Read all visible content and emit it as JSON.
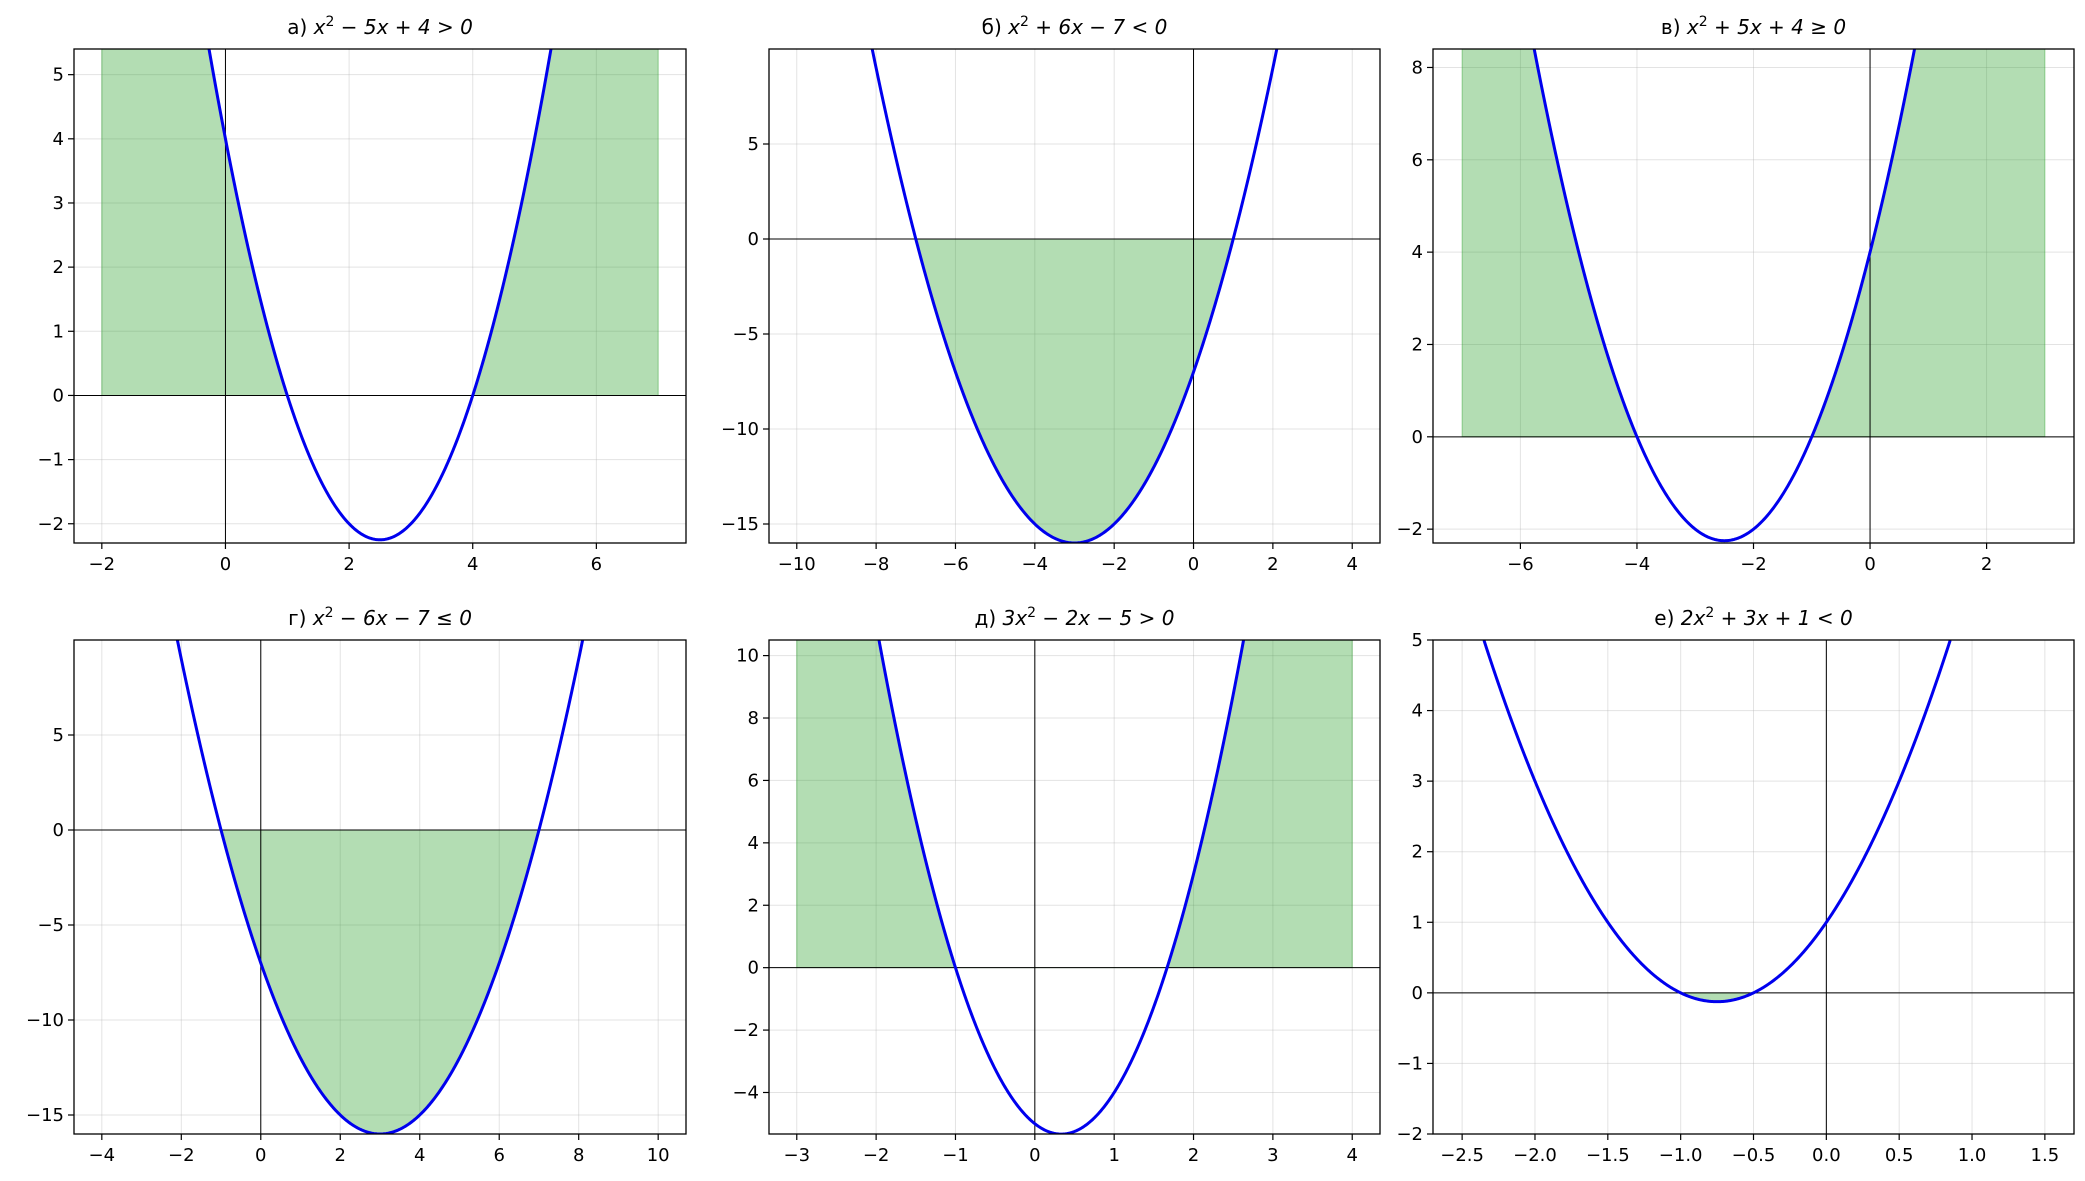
{
  "chart_data": [
    {
      "type": "line",
      "title": "а) x² − 5x + 4 > 0",
      "title_parts": {
        "prefix": "а) ",
        "expr": [
          "x",
          "2",
          " − 5x + 4 > 0"
        ]
      },
      "a": 1,
      "b": -5,
      "c": 4,
      "curve_x": [
        -0.35,
        5.35
      ],
      "xlim": [
        -2.45,
        7.45
      ],
      "ylim": [
        -2.3,
        5.4
      ],
      "xticks": [
        -2,
        0,
        2,
        4,
        6
      ],
      "xtick_labels": [
        "−2",
        "0",
        "2",
        "4",
        "6"
      ],
      "yticks": [
        -2,
        -1,
        0,
        1,
        2,
        3,
        4,
        5
      ],
      "ytick_labels": [
        "−2",
        "−1",
        "0",
        "1",
        "2",
        "3",
        "4",
        "5"
      ],
      "fill": {
        "x": [
          -2,
          7
        ],
        "sign": "positive"
      },
      "grid": true,
      "colors": {
        "curve": "#0000ee",
        "fill": "#2ca02c"
      }
    },
    {
      "type": "line",
      "title": "б) x² + 6x − 7 < 0",
      "title_parts": {
        "prefix": "б) ",
        "expr": [
          "x",
          "2",
          " + 6x − 7 < 0"
        ]
      },
      "a": 1,
      "b": 6,
      "c": -7,
      "curve_x": [
        -8.1,
        2.1
      ],
      "xlim": [
        -10.7,
        4.7
      ],
      "ylim": [
        -16.0,
        10.0
      ],
      "xticks": [
        -10,
        -8,
        -6,
        -4,
        -2,
        0,
        2,
        4
      ],
      "xtick_labels": [
        "−10",
        "−8",
        "−6",
        "−4",
        "−2",
        "0",
        "2",
        "4"
      ],
      "yticks": [
        -15,
        -10,
        -5,
        0,
        5
      ],
      "ytick_labels": [
        "−15",
        "−10",
        "−5",
        "0",
        "5"
      ],
      "fill": {
        "x": [
          -7,
          1
        ],
        "sign": "negative"
      },
      "grid": true,
      "colors": {
        "curve": "#0000ee",
        "fill": "#2ca02c"
      }
    },
    {
      "type": "line",
      "title": "в) x² + 5x + 4 ≥ 0",
      "title_parts": {
        "prefix": "в) ",
        "expr": [
          "x",
          "2",
          " + 5x + 4 ≥ 0"
        ]
      },
      "a": 1,
      "b": 5,
      "c": 4,
      "curve_x": [
        -5.85,
        0.85
      ],
      "xlim": [
        -7.5,
        3.5
      ],
      "ylim": [
        -2.3,
        8.4
      ],
      "xticks": [
        -6,
        -4,
        -2,
        0,
        2
      ],
      "xtick_labels": [
        "−6",
        "−4",
        "−2",
        "0",
        "2"
      ],
      "yticks": [
        -2,
        0,
        2,
        4,
        6,
        8
      ],
      "ytick_labels": [
        "−2",
        "0",
        "2",
        "4",
        "6",
        "8"
      ],
      "fill": {
        "x": [
          -7,
          3
        ],
        "sign": "positive"
      },
      "grid": true,
      "colors": {
        "curve": "#0000ee",
        "fill": "#2ca02c"
      }
    },
    {
      "type": "line",
      "title": "г) x² − 6x − 7 ≤ 0",
      "title_parts": {
        "prefix": "г) ",
        "expr": [
          "x",
          "2",
          " − 6x − 7 ≤ 0"
        ]
      },
      "a": 1,
      "b": -6,
      "c": -7,
      "curve_x": [
        -2.1,
        8.1
      ],
      "xlim": [
        -4.7,
        10.7
      ],
      "ylim": [
        -16.0,
        10.0
      ],
      "xticks": [
        -4,
        -2,
        0,
        2,
        4,
        6,
        8,
        10
      ],
      "xtick_labels": [
        "−4",
        "−2",
        "0",
        "2",
        "4",
        "6",
        "8",
        "10"
      ],
      "yticks": [
        -15,
        -10,
        -5,
        0,
        5
      ],
      "ytick_labels": [
        "−15",
        "−10",
        "−5",
        "0",
        "5"
      ],
      "fill": {
        "x": [
          -1,
          7
        ],
        "sign": "negative"
      },
      "grid": true,
      "colors": {
        "curve": "#0000ee",
        "fill": "#2ca02c"
      }
    },
    {
      "type": "line",
      "title": "д) 3x² − 2x − 5 > 0",
      "title_parts": {
        "prefix": "д) ",
        "expr": [
          "3x",
          "2",
          " − 2x − 5 > 0"
        ]
      },
      "a": 3,
      "b": -2,
      "c": -5,
      "curve_x": [
        -2.05,
        2.7
      ],
      "xlim": [
        -3.35,
        4.35
      ],
      "ylim": [
        -5.33,
        10.5
      ],
      "xticks": [
        -3,
        -2,
        -1,
        0,
        1,
        2,
        3,
        4
      ],
      "xtick_labels": [
        "−3",
        "−2",
        "−1",
        "0",
        "1",
        "2",
        "3",
        "4"
      ],
      "yticks": [
        -4,
        -2,
        0,
        2,
        4,
        6,
        8,
        10
      ],
      "ytick_labels": [
        "−4",
        "−2",
        "0",
        "2",
        "4",
        "6",
        "8",
        "10"
      ],
      "fill": {
        "x": [
          -3,
          4
        ],
        "sign": "positive"
      },
      "grid": true,
      "colors": {
        "curve": "#0000ee",
        "fill": "#2ca02c"
      }
    },
    {
      "type": "line",
      "title": "е) 2x² + 3x + 1 < 0",
      "title_parts": {
        "prefix": "е) ",
        "expr": [
          "2x",
          "2",
          " + 3x + 1 < 0"
        ]
      },
      "a": 2,
      "b": 3,
      "c": 1,
      "curve_x": [
        -2.35,
        0.85
      ],
      "xlim": [
        -2.7,
        1.7
      ],
      "ylim": [
        -2.0,
        5.0
      ],
      "xticks": [
        -2.5,
        -2.0,
        -1.5,
        -1.0,
        -0.5,
        0.0,
        0.5,
        1.0,
        1.5
      ],
      "xtick_labels": [
        "−2.5",
        "−2.0",
        "−1.5",
        "−1.0",
        "−0.5",
        "0.0",
        "0.5",
        "1.0",
        "1.5"
      ],
      "yticks": [
        -2,
        -1,
        0,
        1,
        2,
        3,
        4,
        5
      ],
      "ytick_labels": [
        "−2",
        "−1",
        "0",
        "1",
        "2",
        "3",
        "4",
        "5"
      ],
      "fill": {
        "x": [
          -1,
          -0.5
        ],
        "sign": "negative"
      },
      "grid": true,
      "colors": {
        "curve": "#0000ee",
        "fill": "#2ca02c"
      }
    }
  ]
}
